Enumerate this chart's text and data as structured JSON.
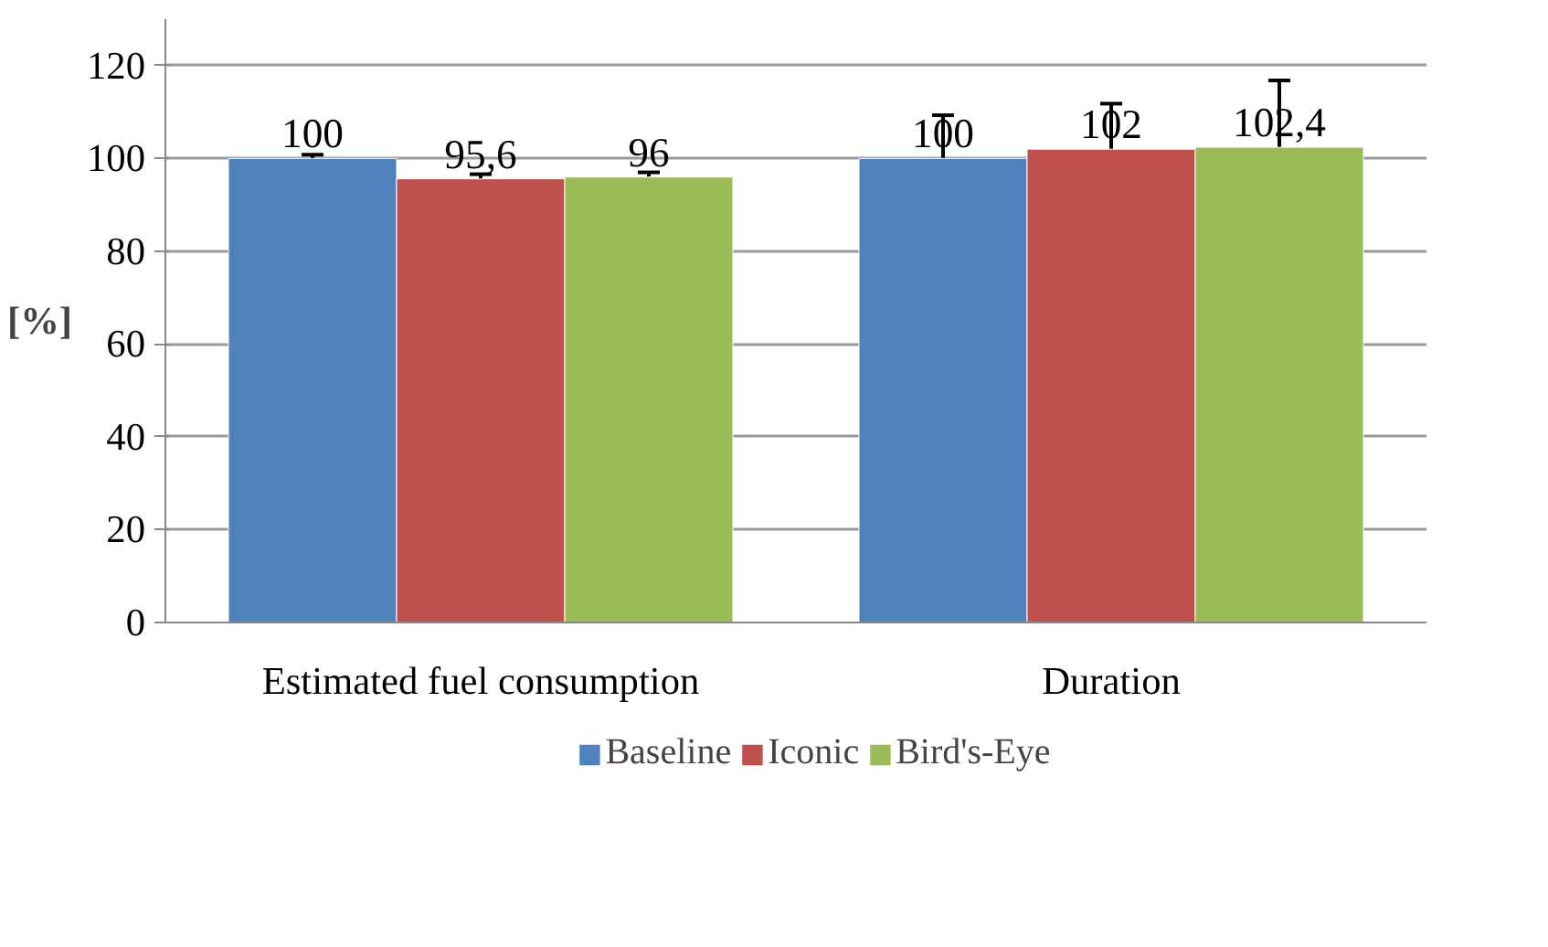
{
  "chart_data": {
    "type": "bar",
    "ylabel": "[%]",
    "categories": [
      "Estimated fuel consumption",
      "Duration"
    ],
    "series": [
      {
        "name": "Baseline",
        "color": "#4f81bd",
        "values": [
          100,
          100
        ],
        "errors": [
          0.8,
          9.3
        ],
        "value_labels": [
          "100",
          "100"
        ]
      },
      {
        "name": "Iconic",
        "color": "#c0504d",
        "values": [
          95.6,
          102
        ],
        "errors": [
          1,
          9.8
        ],
        "value_labels": [
          "95,6",
          "102"
        ]
      },
      {
        "name": "Bird's-Eye",
        "color": "#9bbb59",
        "values": [
          96,
          102.4
        ],
        "errors": [
          1,
          14.4
        ],
        "value_labels": [
          "96",
          "102,4"
        ]
      }
    ],
    "ylim": [
      0,
      130
    ],
    "yticks": [
      0,
      20,
      40,
      60,
      80,
      100,
      120
    ],
    "grid": "y",
    "legend": "bottom"
  }
}
